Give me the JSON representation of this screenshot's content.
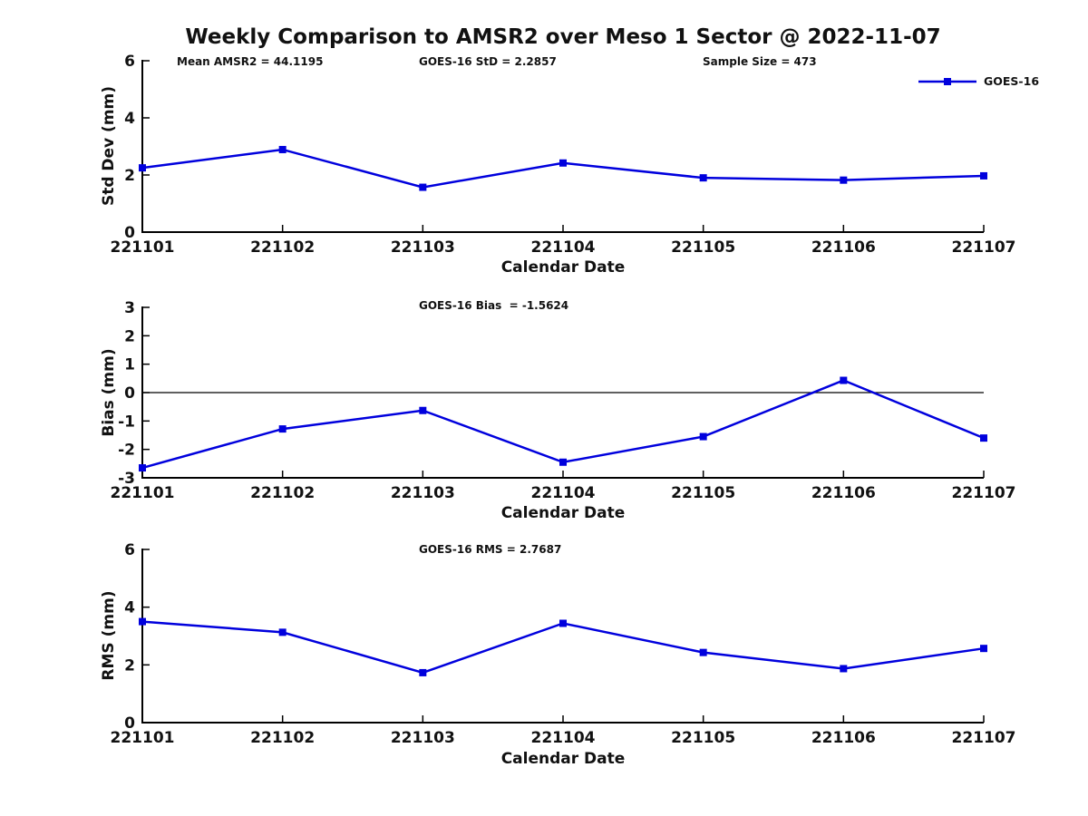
{
  "title": "Weekly Comparison to AMSR2 over Meso 1 Sector @ 2022-11-07",
  "legend": {
    "label": "GOES-16"
  },
  "colors": {
    "line": "#0000dd",
    "axis": "#000000"
  },
  "chart_data": [
    {
      "type": "line",
      "ylabel": "Std Dev (mm)",
      "xlabel": "Calendar Date",
      "ylim": [
        0,
        6
      ],
      "yticks": [
        0,
        2,
        4,
        6
      ],
      "categories": [
        "221101",
        "221102",
        "221103",
        "221104",
        "221105",
        "221106",
        "221107"
      ],
      "series": [
        {
          "name": "GOES-16",
          "values": [
            2.25,
            2.89,
            1.57,
            2.42,
            1.9,
            1.82,
            1.97
          ]
        }
      ],
      "zero_line": false,
      "grid": false,
      "legend_position": "top-right",
      "annotations": [
        {
          "text": "Mean AMSR2 = 44.1195"
        },
        {
          "text": "GOES-16 StD = 2.2857"
        },
        {
          "text": "Sample Size = 473"
        }
      ]
    },
    {
      "type": "line",
      "ylabel": "Bias (mm)",
      "xlabel": "Calendar Date",
      "ylim": [
        -3,
        3
      ],
      "yticks": [
        -3,
        -2,
        -1,
        0,
        1,
        2,
        3
      ],
      "categories": [
        "221101",
        "221102",
        "221103",
        "221104",
        "221105",
        "221106",
        "221107"
      ],
      "series": [
        {
          "name": "GOES-16",
          "values": [
            -2.65,
            -1.28,
            -0.63,
            -2.45,
            -1.55,
            0.43,
            -1.6
          ]
        }
      ],
      "zero_line": true,
      "grid": false,
      "annotations": [
        {
          "text": "GOES-16 Bias  = -1.5624"
        }
      ]
    },
    {
      "type": "line",
      "ylabel": "RMS (mm)",
      "xlabel": "Calendar Date",
      "ylim": [
        0,
        6
      ],
      "yticks": [
        0,
        2,
        4,
        6
      ],
      "categories": [
        "221101",
        "221102",
        "221103",
        "221104",
        "221105",
        "221106",
        "221107"
      ],
      "series": [
        {
          "name": "GOES-16",
          "values": [
            3.5,
            3.13,
            1.73,
            3.44,
            2.43,
            1.87,
            2.57
          ]
        }
      ],
      "zero_line": false,
      "grid": false,
      "annotations": [
        {
          "text": "GOES-16 RMS = 2.7687"
        }
      ]
    }
  ]
}
